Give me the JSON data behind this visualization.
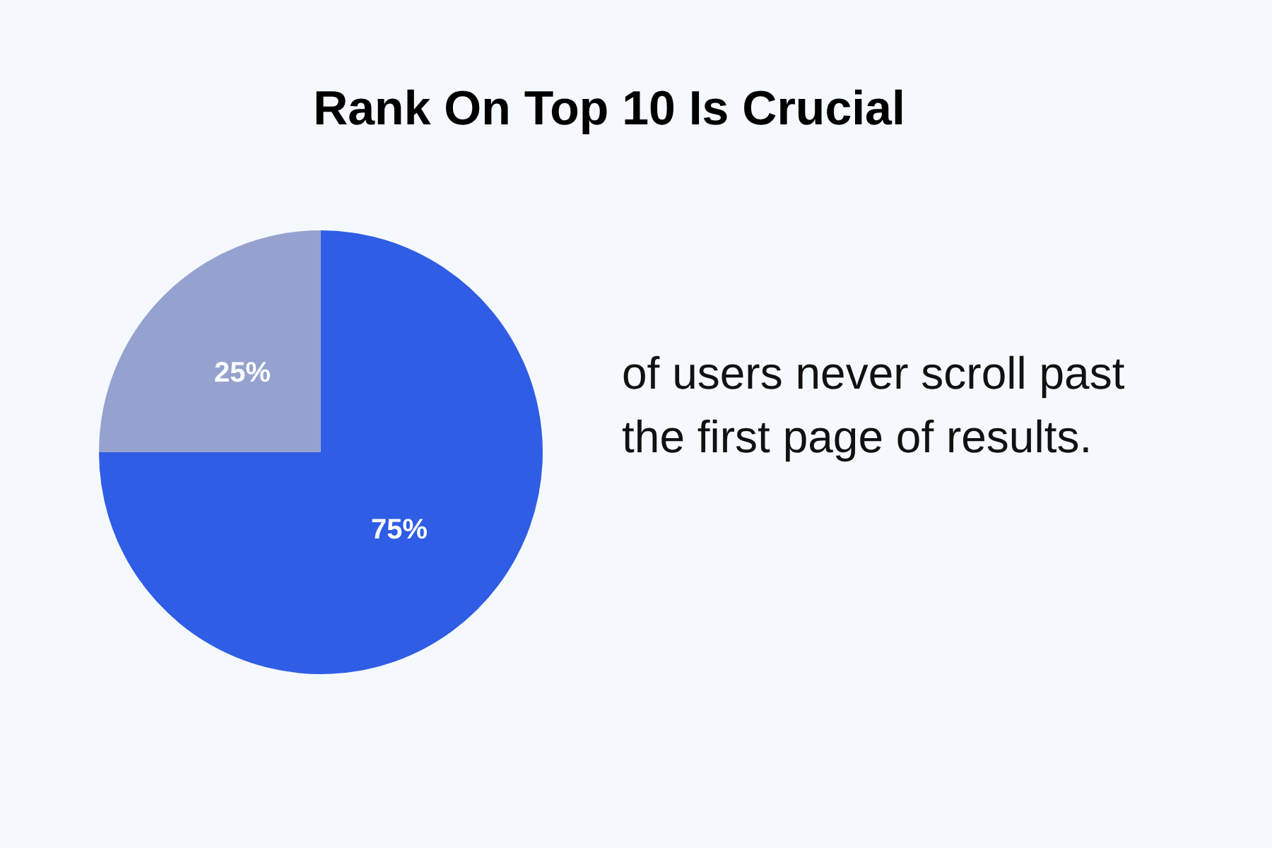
{
  "chart_data": {
    "type": "pie",
    "title": "Rank On Top 10 Is Crucial",
    "categories": [
      null,
      null
    ],
    "values": [
      75,
      25
    ],
    "colors": [
      "#2f5de5",
      "#95a2cf"
    ],
    "value_labels": [
      "75%",
      "25%"
    ],
    "legend": false,
    "annotations": [
      "of users never scroll past the first page of results."
    ]
  }
}
